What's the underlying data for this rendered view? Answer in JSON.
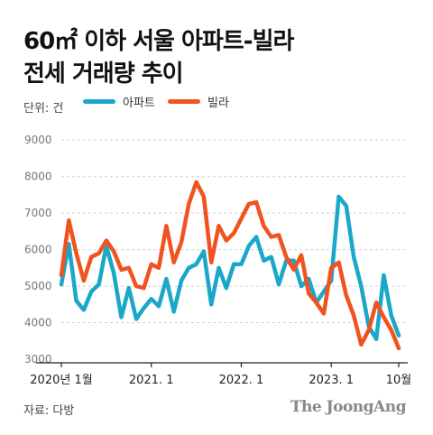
{
  "title_lines": [
    "60㎡ 이하 서울 아파트-빌라",
    "전세 거래량 추이"
  ],
  "unit_label": "단위: 건",
  "source": "자료: 다방",
  "brand": "The JoongAng",
  "colors": {
    "apartment": "#1aa7c9",
    "villa": "#f0531f",
    "grid": "#d0d0d0",
    "axis": "#222222"
  },
  "chart_data": {
    "type": "line",
    "ylim": [
      3000,
      9500
    ],
    "yticks": [
      3000,
      4000,
      5000,
      6000,
      7000,
      8000,
      9000
    ],
    "xtick_labels": [
      "2020년 1월",
      "2021. 1",
      "2022. 1",
      "2023. 1",
      "10월"
    ],
    "xtick_positions": [
      "2020-01",
      "2021-01",
      "2022-01",
      "2023-01",
      "2023-10"
    ],
    "x": [
      "2020-01",
      "2020-02",
      "2020-03",
      "2020-04",
      "2020-05",
      "2020-06",
      "2020-07",
      "2020-08",
      "2020-09",
      "2020-10",
      "2020-11",
      "2020-12",
      "2021-01",
      "2021-02",
      "2021-03",
      "2021-04",
      "2021-05",
      "2021-06",
      "2021-07",
      "2021-08",
      "2021-09",
      "2021-10",
      "2021-11",
      "2021-12",
      "2022-01",
      "2022-02",
      "2022-03",
      "2022-04",
      "2022-05",
      "2022-06",
      "2022-07",
      "2022-08",
      "2022-09",
      "2022-10",
      "2022-11",
      "2022-12",
      "2023-01",
      "2023-02",
      "2023-03",
      "2023-04",
      "2023-05",
      "2023-06",
      "2023-07",
      "2023-08",
      "2023-09",
      "2023-10"
    ],
    "series": [
      {
        "name": "아파트",
        "values": [
          5050,
          6150,
          4600,
          4350,
          4850,
          5050,
          6100,
          5350,
          4150,
          4950,
          4100,
          4400,
          4650,
          4450,
          5200,
          4300,
          5150,
          5500,
          5600,
          5950,
          4500,
          5500,
          4950,
          5600,
          5600,
          6100,
          6350,
          5700,
          5800,
          5050,
          5700,
          5700,
          5000,
          5200,
          4550,
          4850,
          5150,
          7450,
          7200,
          5800,
          5000,
          3900,
          3550,
          5300,
          4200,
          3650
        ]
      },
      {
        "name": "빌라",
        "values": [
          5300,
          6800,
          5900,
          5150,
          5800,
          5900,
          6250,
          5950,
          5450,
          5500,
          5000,
          4950,
          5600,
          5500,
          6650,
          5650,
          6200,
          7250,
          7850,
          7450,
          5650,
          6650,
          6250,
          6450,
          6850,
          7250,
          7300,
          6650,
          6350,
          6400,
          5800,
          5450,
          5850,
          4800,
          4550,
          4250,
          5500,
          5650,
          4750,
          4200,
          3400,
          3800,
          4550,
          4150,
          3800,
          3300
        ]
      }
    ]
  }
}
